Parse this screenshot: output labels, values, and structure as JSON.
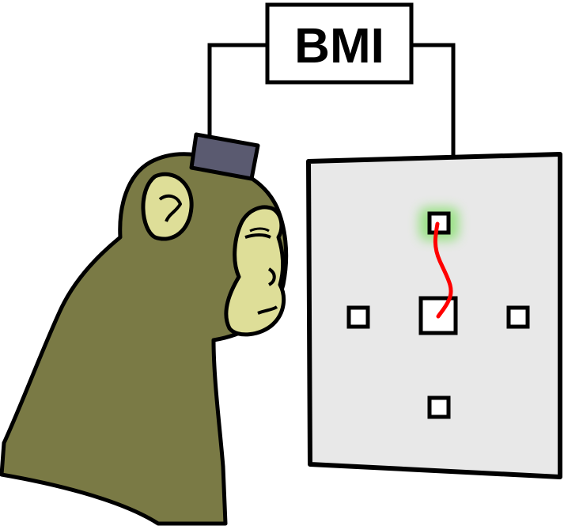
{
  "title": "BMI",
  "figure": {
    "subject": "monkey",
    "implant": "electrode-array",
    "display": "monitor",
    "targets": [
      "top",
      "left",
      "right",
      "bottom"
    ],
    "cursor_start": "center",
    "active_target": "top"
  },
  "colors": {
    "monkey_fur": "#7a7a45",
    "monkey_face": "#dede98",
    "implant": "#5a5a70",
    "screen": "#e8e8e8",
    "trajectory": "#ff0000",
    "target_glow": "#66dd44",
    "outline": "#000000"
  }
}
